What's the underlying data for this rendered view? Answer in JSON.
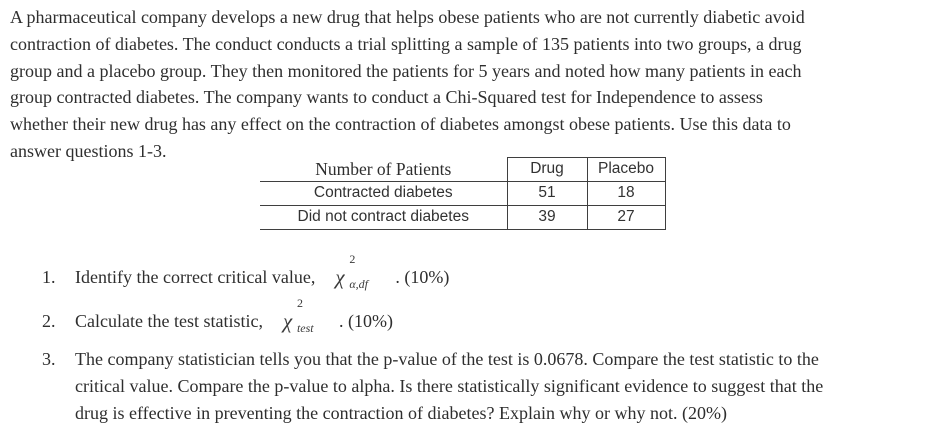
{
  "intro": {
    "lines": [
      "A pharmaceutical company develops a new drug that helps obese patients who are not currently diabetic avoid",
      "contraction of diabetes. The conduct conducts a trial splitting a sample of 135 patients into two groups, a drug",
      "group and a placebo group. They then monitored the patients for 5 years and noted how many patients in each",
      "group contracted diabetes. The company wants to conduct a Chi-Squared test for Independence to assess",
      "whether their new drug has any effect on the contraction of diabetes amongst obese patients. Use this data to",
      "answer questions 1-3."
    ]
  },
  "table": {
    "header": {
      "label": "Number of Patients",
      "drug": "Drug",
      "placebo": "Placebo"
    },
    "rows": [
      {
        "label": "Contracted diabetes",
        "drug": "51",
        "placebo": "18"
      },
      {
        "label": "Did not contract diabetes",
        "drug": "39",
        "placebo": "27"
      }
    ]
  },
  "questions": {
    "q1": {
      "number": "1.",
      "text": "Identify the correct critical value,",
      "math": {
        "base": "χ",
        "sup": "2",
        "sub": "α,df"
      },
      "after": ". (10%)"
    },
    "q2": {
      "number": "2.",
      "text": "Calculate the test statistic,",
      "math": {
        "base": "χ",
        "sup": "2",
        "sub": "test"
      },
      "after": ". (10%)"
    },
    "q3": {
      "number": "3.",
      "lines": [
        "The company statistician tells you that the p-value of the test is 0.0678. Compare the test statistic to the",
        "critical value. Compare the p-value to alpha. Is there statistically significant evidence to suggest that the",
        "drug is effective in preventing the contraction of diabetes? Explain why or why not. (20%)"
      ]
    }
  }
}
